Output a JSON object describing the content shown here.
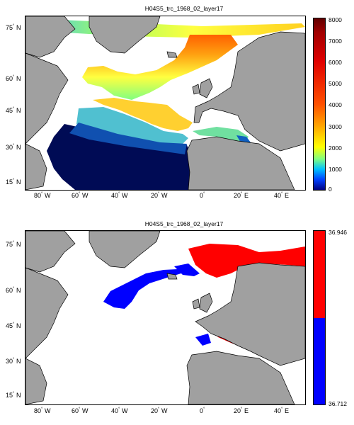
{
  "maps": [
    {
      "title": "H04S5_trc_1968_02_layer17",
      "colorbar": {
        "type": "continuous",
        "ticks": [
          "8000",
          "7000",
          "6000",
          "5000",
          "4000",
          "3000",
          "2000",
          "1000",
          "0"
        ]
      },
      "lat_labels": [
        "75",
        "60",
        "45",
        "30",
        "15"
      ],
      "lat_suffix": "N",
      "lon_labels": [
        "80",
        "60",
        "40",
        "20",
        "0",
        "20",
        "40"
      ],
      "lon_suffixes": [
        "W",
        "W",
        "W",
        "W",
        "",
        "E",
        "E"
      ]
    },
    {
      "title": "H04S5_trc_1968_02_layer17",
      "colorbar": {
        "type": "two-class",
        "top_value": "36.946",
        "bottom_value": "36.712",
        "colors": [
          "#ff0000",
          "#0000ff"
        ]
      },
      "lat_labels": [
        "75",
        "60",
        "45",
        "30",
        "15"
      ],
      "lat_suffix": "N",
      "lon_labels": [
        "80",
        "60",
        "40",
        "20",
        "0",
        "20",
        "40"
      ],
      "lon_suffixes": [
        "W",
        "W",
        "W",
        "W",
        "",
        "E",
        "E"
      ]
    }
  ],
  "colors": {
    "land": "#a0a0a0",
    "ocean_nodata": "#ffffff",
    "low_class": "#0000ff",
    "high_class": "#ff0000"
  }
}
